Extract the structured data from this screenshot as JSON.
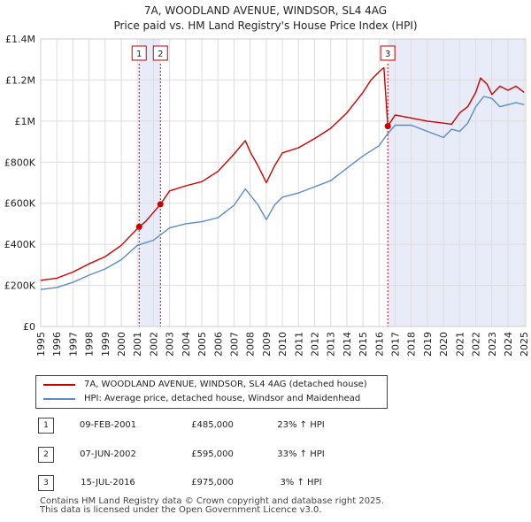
{
  "title_line1": "7A, WOODLAND AVENUE, WINDSOR, SL4 4AG",
  "title_line2": "Price paid vs. HM Land Registry's House Price Index (HPI)",
  "colors": {
    "property": "#cc0000",
    "hpi": "#5b8ac9",
    "shade": "#e8ecf8",
    "grid": "#dddddd"
  },
  "legend": {
    "property_label": "7A, WOODLAND AVENUE, WINDSOR, SL4 4AG (detached house)",
    "hpi_label": "HPI: Average price, detached house, Windsor and Maidenhead"
  },
  "sales": [
    {
      "badge": "1",
      "date": "09-FEB-2001",
      "price": "£485,000",
      "hpi": "23% ↑ HPI"
    },
    {
      "badge": "2",
      "date": "07-JUN-2002",
      "price": "£595,000",
      "hpi": "33% ↑ HPI"
    },
    {
      "badge": "3",
      "date": "15-JUL-2016",
      "price": "£975,000",
      "hpi": "3% ↑ HPI"
    }
  ],
  "footer_line1": "Contains HM Land Registry data © Crown copyright and database right 2025.",
  "footer_line2": "This data is licensed under the Open Government Licence v3.0.",
  "chart_data": {
    "type": "line",
    "title": "7A, WOODLAND AVENUE, WINDSOR, SL4 4AG — Price paid vs. HM Land Registry's House Price Index (HPI)",
    "xlabel": "",
    "ylabel": "",
    "xlim": [
      1995,
      2025.1
    ],
    "ylim": [
      0,
      1400000
    ],
    "x_ticks": [
      1995,
      1996,
      1997,
      1998,
      1999,
      2000,
      2001,
      2002,
      2003,
      2004,
      2005,
      2006,
      2007,
      2008,
      2009,
      2010,
      2011,
      2012,
      2013,
      2014,
      2015,
      2016,
      2017,
      2018,
      2019,
      2020,
      2021,
      2022,
      2023,
      2024,
      2025
    ],
    "x_tick_labels": [
      "1995",
      "1996",
      "1997",
      "1998",
      "1999",
      "2000",
      "2001",
      "2002",
      "2003",
      "2004",
      "2005",
      "2006",
      "2007",
      "2008",
      "2009",
      "2010",
      "2011",
      "2012",
      "2013",
      "2014",
      "2015",
      "2016",
      "2017",
      "2018",
      "2019",
      "2020",
      "2021",
      "2022",
      "2023",
      "2024",
      "2025"
    ],
    "y_ticks": [
      0,
      200000,
      400000,
      600000,
      800000,
      1000000,
      1200000,
      1400000
    ],
    "y_tick_labels": [
      "£0",
      "£200K",
      "£400K",
      "£600K",
      "£800K",
      "£1M",
      "£1.2M",
      "£1.4M"
    ],
    "grid": true,
    "sale_markers": [
      {
        "label": "1",
        "x": 2001.11,
        "price": 485000
      },
      {
        "label": "2",
        "x": 2002.43,
        "price": 595000
      },
      {
        "label": "3",
        "x": 2016.54,
        "price": 975000
      }
    ],
    "shaded_ranges": [
      [
        2001.11,
        2002.43
      ],
      [
        2016.54,
        2025.0
      ]
    ],
    "series": [
      {
        "name": "7A, WOODLAND AVENUE, WINDSOR, SL4 4AG (detached house)",
        "x": [
          1995,
          1996,
          1997,
          1998,
          1999,
          2000,
          2001.11,
          2001.5,
          2002.43,
          2003,
          2004,
          2005,
          2006,
          2007,
          2007.7,
          2008,
          2008.5,
          2009,
          2009.5,
          2010,
          2011,
          2012,
          2013,
          2014,
          2015,
          2015.5,
          2016,
          2016.3,
          2016.54,
          2017,
          2018,
          2019,
          2020,
          2020.5,
          2021,
          2021.5,
          2022,
          2022.3,
          2022.7,
          2023,
          2023.5,
          2024,
          2024.5,
          2025
        ],
        "values": [
          225000,
          235000,
          265000,
          305000,
          340000,
          395000,
          485000,
          510000,
          595000,
          660000,
          685000,
          705000,
          755000,
          840000,
          905000,
          850000,
          780000,
          700000,
          780000,
          845000,
          870000,
          915000,
          965000,
          1040000,
          1140000,
          1200000,
          1240000,
          1260000,
          975000,
          1030000,
          1015000,
          1000000,
          990000,
          985000,
          1040000,
          1070000,
          1140000,
          1210000,
          1180000,
          1130000,
          1170000,
          1150000,
          1170000,
          1140000
        ]
      },
      {
        "name": "HPI: Average price, detached house, Windsor and Maidenhead",
        "x": [
          1995,
          1996,
          1997,
          1998,
          1999,
          2000,
          2001,
          2002,
          2003,
          2004,
          2005,
          2006,
          2007,
          2007.7,
          2008,
          2008.5,
          2009,
          2009.5,
          2010,
          2011,
          2012,
          2013,
          2014,
          2015,
          2016,
          2016.5,
          2017,
          2018,
          2019,
          2020,
          2020.5,
          2021,
          2021.5,
          2022,
          2022.5,
          2023,
          2023.5,
          2024,
          2024.5,
          2025
        ],
        "values": [
          180000,
          190000,
          215000,
          250000,
          280000,
          325000,
          395000,
          420000,
          480000,
          500000,
          510000,
          530000,
          590000,
          670000,
          640000,
          590000,
          520000,
          590000,
          630000,
          650000,
          680000,
          710000,
          770000,
          830000,
          880000,
          935000,
          980000,
          980000,
          950000,
          920000,
          960000,
          950000,
          990000,
          1070000,
          1120000,
          1110000,
          1070000,
          1080000,
          1090000,
          1080000
        ]
      }
    ]
  }
}
